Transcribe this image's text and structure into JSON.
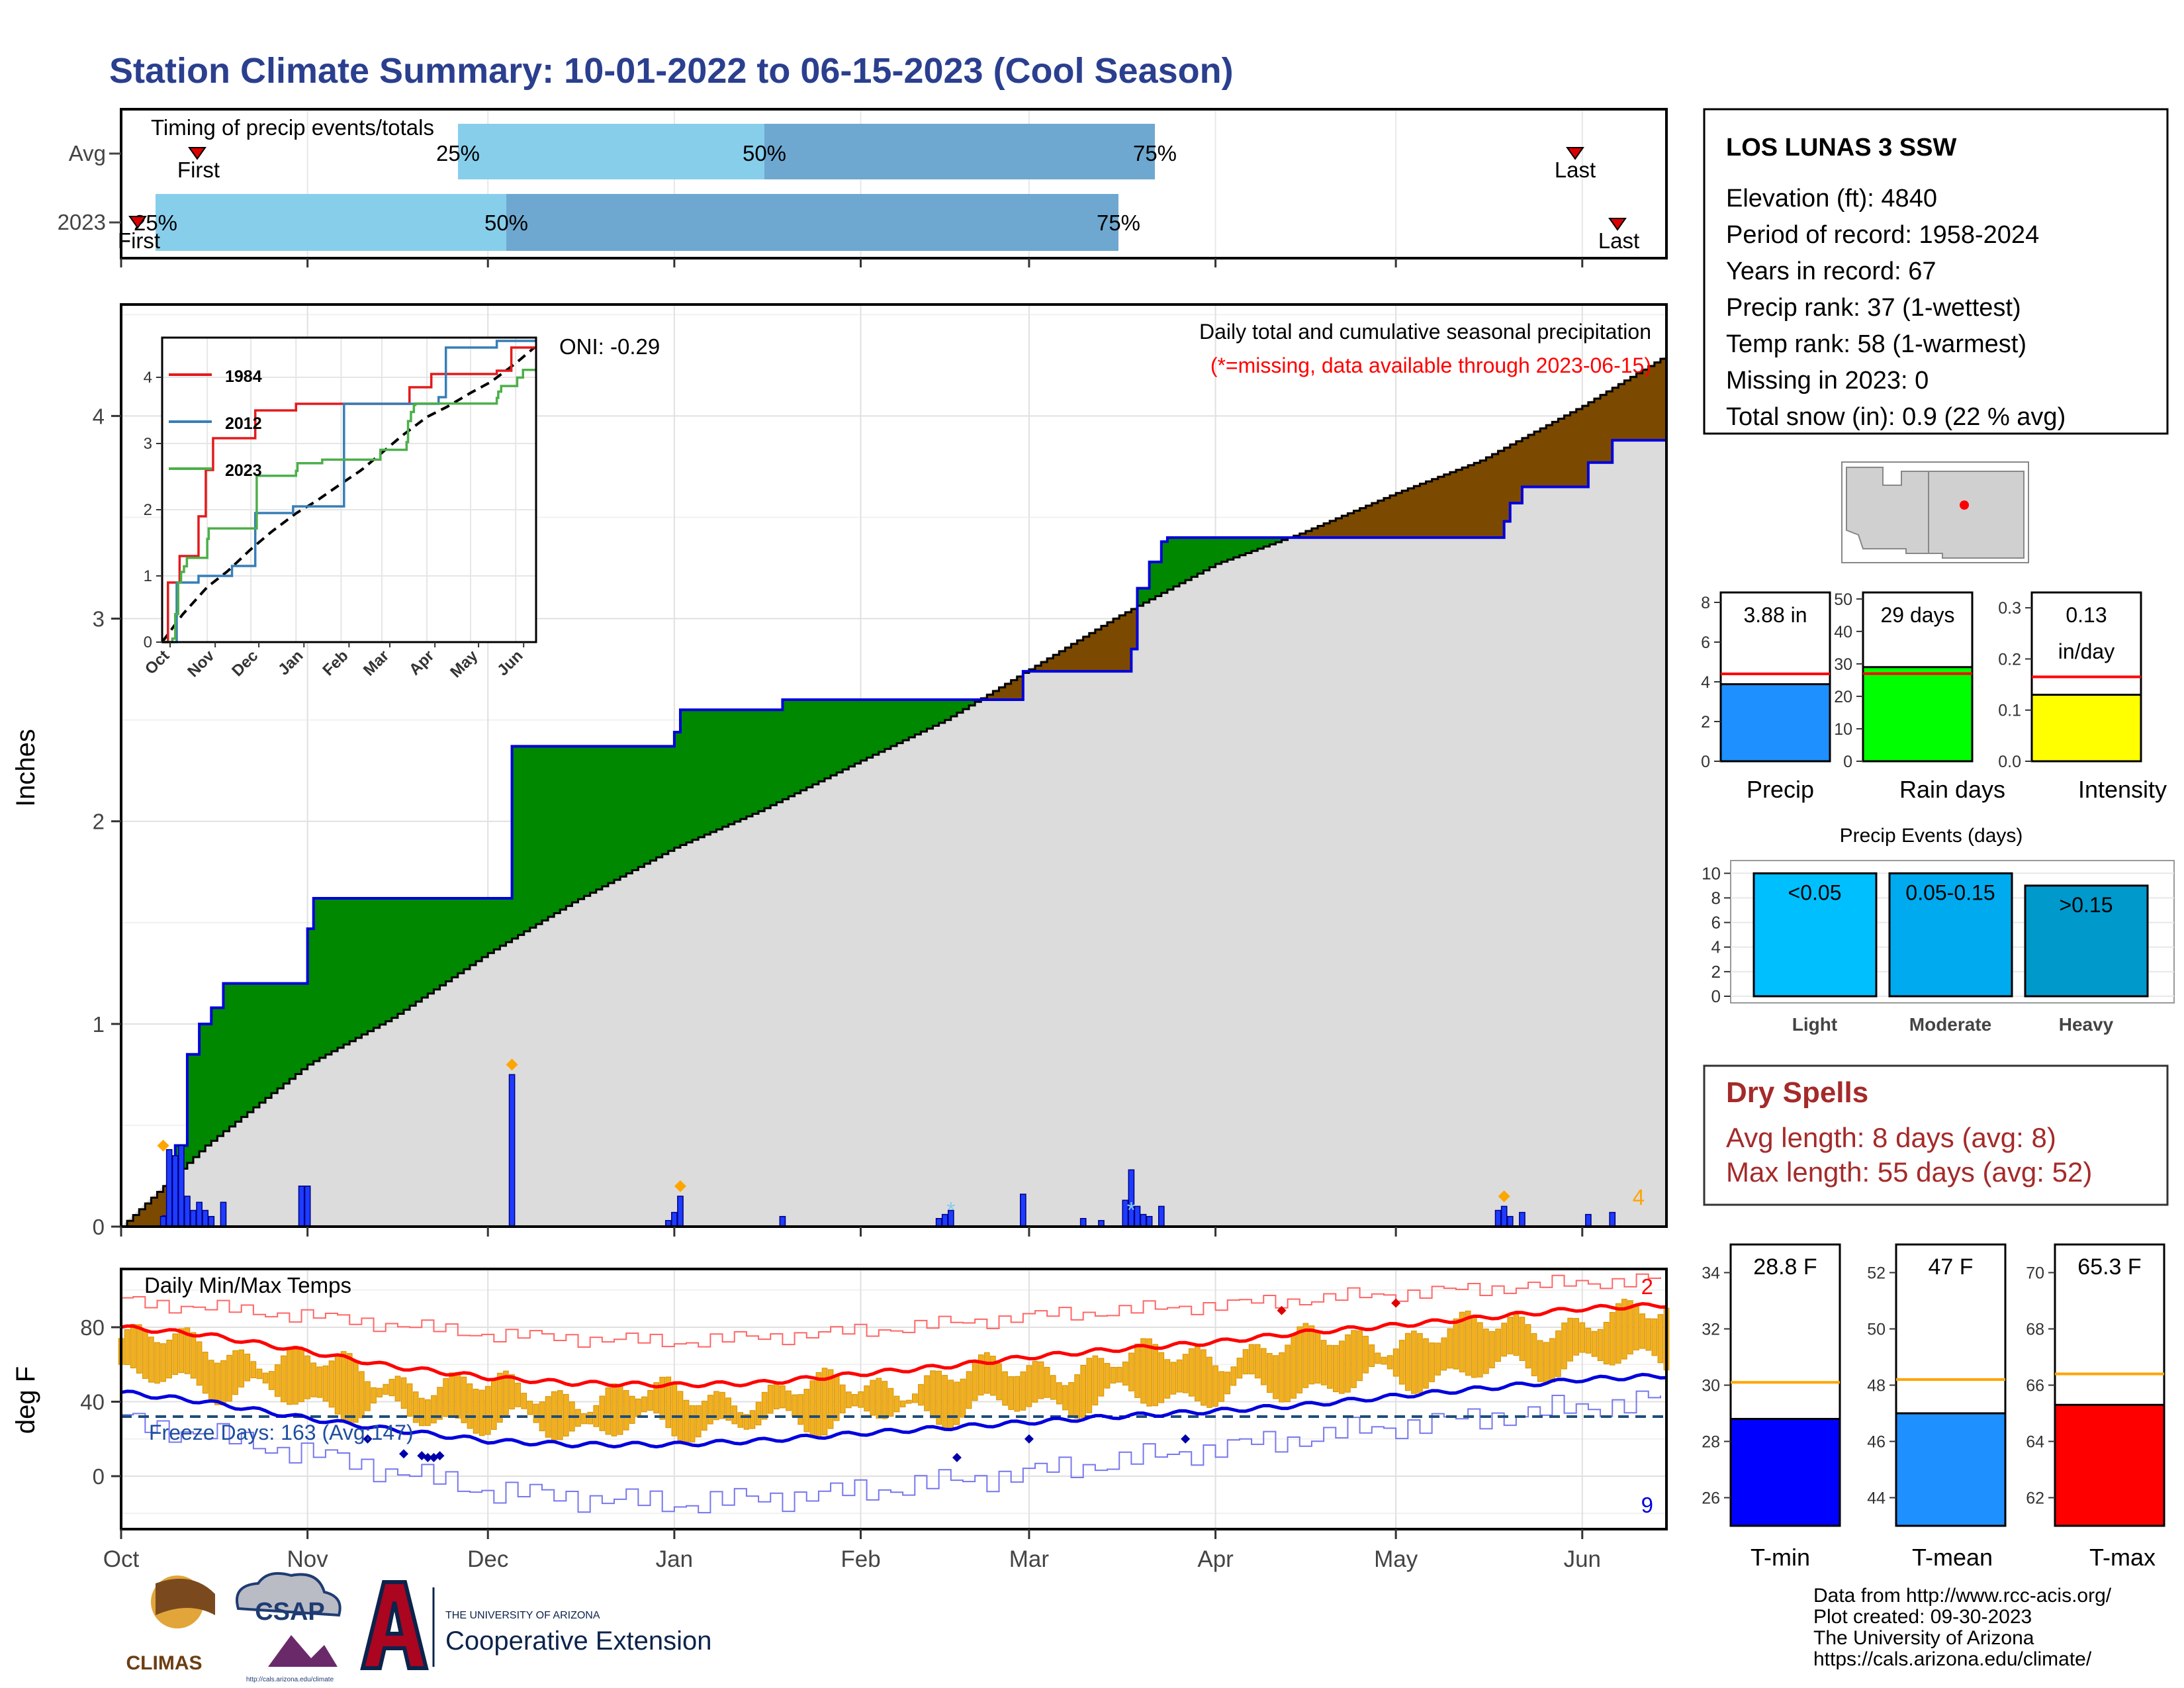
{
  "title": "Station Climate Summary: 10-01-2022 to 06-15-2023 (Cool Season)",
  "colors": {
    "title": "#2b3f8f",
    "dry": "#a52a2a",
    "above": "#008000",
    "below": "#7b4a00",
    "cum": "#dcdcdc",
    "daily": "#0000ff",
    "tmin": "#0000ff",
    "tmean": "#1e90ff",
    "tmax": "#ff0000",
    "avgline": "#ffa500"
  },
  "timing": {
    "title": "Timing of precip events/totals",
    "rows": [
      "Avg",
      "2023"
    ],
    "pct": [
      "25%",
      "50%",
      "75%"
    ],
    "first": "First",
    "last": "Last"
  },
  "info": {
    "station": "LOS LUNAS 3 SSW",
    "lines": [
      "Elevation (ft): 4840",
      "Period of record: 1958-2024",
      "Years in record: 67",
      "Precip rank: 37 (1-wettest)",
      "Temp rank: 58 (1-warmest)",
      "Missing in 2023: 0",
      "Total snow (in): 0.9 (22 % avg)"
    ]
  },
  "precip_panel": {
    "ylabel": "Inches",
    "yticks": [
      "0",
      "1",
      "2",
      "3",
      "4"
    ],
    "oni": "ONI: -0.29",
    "legend1": "Daily total and cumulative seasonal precipitation",
    "legend2": "(*=missing, data available through 2023-06-15)",
    "corner": "4"
  },
  "inset": {
    "years": [
      "1984",
      "2012",
      "2023"
    ],
    "xticks": [
      "Oct",
      "Nov",
      "Dec",
      "Jan",
      "Feb",
      "Mar",
      "Apr",
      "May",
      "Jun"
    ],
    "yticks": [
      "0",
      "1",
      "2",
      "3",
      "4"
    ]
  },
  "temp_panel": {
    "ylabel": "deg F",
    "title": "Daily Min/Max Temps",
    "freeze": "Freeze Days: 163 (Avg:147)",
    "yticks": [
      "0",
      "40",
      "80"
    ],
    "corner_max": "2",
    "corner_min": "9"
  },
  "months": [
    "Oct",
    "Nov",
    "Dec",
    "Jan",
    "Feb",
    "Mar",
    "Apr",
    "May",
    "Jun"
  ],
  "small_bars": {
    "precip": {
      "value": "3.88 in",
      "label": "Precip",
      "yticks": [
        "0",
        "2",
        "4",
        "6",
        "8"
      ]
    },
    "raindays": {
      "value": "29 days",
      "label": "Rain days",
      "yticks": [
        "0",
        "10",
        "20",
        "30",
        "40",
        "50"
      ]
    },
    "intensity": {
      "value1": "0.13",
      "value2": "in/day",
      "label": "Intensity",
      "yticks": [
        "0.0",
        "0.1",
        "0.2",
        "0.3"
      ]
    }
  },
  "events": {
    "title": "Precip Events (days)",
    "yticks": [
      "0",
      "2",
      "4",
      "6",
      "8",
      "10"
    ],
    "bars": [
      {
        "value_label": "<0.05",
        "label": "Light"
      },
      {
        "value_label": "0.05-0.15",
        "label": "Moderate"
      },
      {
        "value_label": ">0.15",
        "label": "Heavy"
      }
    ]
  },
  "dry": {
    "title": "Dry Spells",
    "avg": "Avg length: 8 days (avg: 8)",
    "max": "Max length: 55 days (avg: 52)"
  },
  "temps_small": {
    "tmin": {
      "value": "28.8 F",
      "label": "T-min",
      "yticks": [
        "26",
        "28",
        "30",
        "32",
        "34"
      ]
    },
    "tmean": {
      "value": "47 F",
      "label": "T-mean",
      "yticks": [
        "44",
        "46",
        "48",
        "50",
        "52"
      ]
    },
    "tmax": {
      "value": "65.3 F",
      "label": "T-max",
      "yticks": [
        "62",
        "64",
        "66",
        "68",
        "70"
      ]
    }
  },
  "footer": {
    "lines": [
      "Data from http://www.rcc-acis.org/",
      "Plot created: 09-30-2023",
      "The University of Arizona",
      "https://cals.arizona.edu/climate/"
    ],
    "climas": "CLIMAS",
    "csap": "CSAP",
    "csap_url": "http://cals.arizona.edu/climate",
    "ua_small": "THE UNIVERSITY OF ARIZONA",
    "ua_big": "Cooperative Extension"
  },
  "chart_data": [
    {
      "type": "area",
      "title": "Daily total and cumulative seasonal precipitation",
      "ylabel": "Inches",
      "ylim": [
        0,
        4.55
      ],
      "xrange": [
        "2022-10-01",
        "2023-06-15"
      ],
      "cumulative_2023": [
        [
          "2022-10-01",
          0
        ],
        [
          "2022-10-08",
          0.05
        ],
        [
          "2022-10-10",
          0.4
        ],
        [
          "2022-10-12",
          0.85
        ],
        [
          "2022-10-14",
          1.0
        ],
        [
          "2022-10-16",
          1.08
        ],
        [
          "2022-10-18",
          1.2
        ],
        [
          "2022-10-31",
          1.2
        ],
        [
          "2022-11-01",
          1.47
        ],
        [
          "2022-11-02",
          1.62
        ],
        [
          "2022-12-04",
          1.62
        ],
        [
          "2022-12-05",
          2.37
        ],
        [
          "2022-12-31",
          2.37
        ],
        [
          "2023-01-01",
          2.44
        ],
        [
          "2023-01-02",
          2.55
        ],
        [
          "2023-01-18",
          2.55
        ],
        [
          "2023-01-19",
          2.6
        ],
        [
          "2023-02-27",
          2.6
        ],
        [
          "2023-02-28",
          2.74
        ],
        [
          "2023-03-17",
          2.74
        ],
        [
          "2023-03-18",
          2.85
        ],
        [
          "2023-03-19",
          3.15
        ],
        [
          "2023-03-21",
          3.28
        ],
        [
          "2023-03-23",
          3.38
        ],
        [
          "2023-03-24",
          3.4
        ],
        [
          "2023-05-18",
          3.4
        ],
        [
          "2023-05-19",
          3.48
        ],
        [
          "2023-05-20",
          3.57
        ],
        [
          "2023-05-22",
          3.65
        ],
        [
          "2023-06-01",
          3.65
        ],
        [
          "2023-06-02",
          3.77
        ],
        [
          "2023-06-06",
          3.88
        ],
        [
          "2023-06-15",
          3.88
        ]
      ],
      "cumulative_avg": [
        [
          "2022-10-01",
          0
        ],
        [
          "2022-10-15",
          0.4
        ],
        [
          "2022-11-01",
          0.8
        ],
        [
          "2022-11-15",
          1.03
        ],
        [
          "2022-12-01",
          1.35
        ],
        [
          "2022-12-15",
          1.6
        ],
        [
          "2023-01-01",
          1.87
        ],
        [
          "2023-01-15",
          2.05
        ],
        [
          "2023-02-01",
          2.3
        ],
        [
          "2023-02-15",
          2.5
        ],
        [
          "2023-03-01",
          2.75
        ],
        [
          "2023-03-15",
          3.0
        ],
        [
          "2023-04-01",
          3.27
        ],
        [
          "2023-04-15",
          3.42
        ],
        [
          "2023-05-01",
          3.62
        ],
        [
          "2023-05-15",
          3.78
        ],
        [
          "2023-06-01",
          4.05
        ],
        [
          "2023-06-15",
          4.3
        ]
      ],
      "daily": [
        [
          "2022-10-08",
          0.05
        ],
        [
          "2022-10-09",
          0.38
        ],
        [
          "2022-10-10",
          0.35
        ],
        [
          "2022-10-11",
          0.4
        ],
        [
          "2022-10-12",
          0.15
        ],
        [
          "2022-10-13",
          0.08
        ],
        [
          "2022-10-14",
          0.12
        ],
        [
          "2022-10-15",
          0.08
        ],
        [
          "2022-10-16",
          0.05
        ],
        [
          "2022-10-18",
          0.12
        ],
        [
          "2022-10-31",
          0.2
        ],
        [
          "2022-11-01",
          0.2
        ],
        [
          "2022-12-05",
          0.75
        ],
        [
          "2022-12-31",
          0.03
        ],
        [
          "2023-01-01",
          0.07
        ],
        [
          "2023-01-02",
          0.15
        ],
        [
          "2023-01-19",
          0.05
        ],
        [
          "2023-02-14",
          0.04
        ],
        [
          "2023-02-15",
          0.06
        ],
        [
          "2023-02-16",
          0.08
        ],
        [
          "2023-02-28",
          0.16
        ],
        [
          "2023-03-10",
          0.04
        ],
        [
          "2023-03-13",
          0.03
        ],
        [
          "2023-03-17",
          0.13
        ],
        [
          "2023-03-18",
          0.28
        ],
        [
          "2023-03-19",
          0.1
        ],
        [
          "2023-03-20",
          0.06
        ],
        [
          "2023-03-21",
          0.05
        ],
        [
          "2023-03-23",
          0.1
        ],
        [
          "2023-05-18",
          0.08
        ],
        [
          "2023-05-19",
          0.1
        ],
        [
          "2023-05-20",
          0.05
        ],
        [
          "2023-05-22",
          0.07
        ],
        [
          "2023-06-02",
          0.06
        ],
        [
          "2023-06-06",
          0.07
        ]
      ]
    },
    {
      "type": "line",
      "title": "",
      "series": [
        {
          "name": "1984"
        },
        {
          "name": "2012"
        },
        {
          "name": "2023"
        }
      ],
      "xticks": [
        "Oct",
        "Nov",
        "Dec",
        "Jan",
        "Feb",
        "Mar",
        "Apr",
        "May",
        "Jun"
      ],
      "ylim": [
        0,
        4.6
      ]
    },
    {
      "type": "line",
      "title": "Daily Min/Max Temps",
      "ylabel": "deg F",
      "ylim": [
        -25,
        110
      ],
      "freeze_line": 32,
      "avg_max": [
        [
          "2022-10-01",
          80
        ],
        [
          "2022-10-15",
          76
        ],
        [
          "2022-11-01",
          67
        ],
        [
          "2022-11-15",
          59
        ],
        [
          "2022-12-01",
          53
        ],
        [
          "2022-12-15",
          50
        ],
        [
          "2023-01-01",
          49
        ],
        [
          "2023-01-15",
          50
        ],
        [
          "2023-02-01",
          55
        ],
        [
          "2023-02-15",
          59
        ],
        [
          "2023-03-01",
          64
        ],
        [
          "2023-03-15",
          68
        ],
        [
          "2023-04-01",
          72
        ],
        [
          "2023-04-15",
          77
        ],
        [
          "2023-05-01",
          81
        ],
        [
          "2023-05-15",
          85
        ],
        [
          "2023-06-01",
          90
        ],
        [
          "2023-06-15",
          92
        ]
      ],
      "avg_min": [
        [
          "2022-10-01",
          45
        ],
        [
          "2022-10-15",
          40
        ],
        [
          "2022-11-01",
          31
        ],
        [
          "2022-11-15",
          25
        ],
        [
          "2022-12-01",
          19
        ],
        [
          "2022-12-15",
          17
        ],
        [
          "2023-01-01",
          17
        ],
        [
          "2023-01-15",
          19
        ],
        [
          "2023-02-01",
          23
        ],
        [
          "2023-02-15",
          26
        ],
        [
          "2023-03-01",
          29
        ],
        [
          "2023-03-15",
          32
        ],
        [
          "2023-04-01",
          35
        ],
        [
          "2023-04-15",
          38
        ],
        [
          "2023-05-01",
          43
        ],
        [
          "2023-05-15",
          47
        ],
        [
          "2023-06-01",
          52
        ],
        [
          "2023-06-15",
          54
        ]
      ],
      "record_max": [
        [
          "2022-10-01",
          94
        ],
        [
          "2022-11-01",
          86
        ],
        [
          "2022-12-01",
          76
        ],
        [
          "2023-01-01",
          72
        ],
        [
          "2023-02-01",
          78
        ],
        [
          "2023-03-01",
          86
        ],
        [
          "2023-04-01",
          92
        ],
        [
          "2023-05-01",
          98
        ],
        [
          "2023-06-01",
          104
        ],
        [
          "2023-06-15",
          106
        ]
      ],
      "record_min": [
        [
          "2022-10-01",
          30
        ],
        [
          "2022-11-01",
          12
        ],
        [
          "2022-12-01",
          -8
        ],
        [
          "2023-01-01",
          -15
        ],
        [
          "2023-02-01",
          -8
        ],
        [
          "2023-03-01",
          2
        ],
        [
          "2023-04-01",
          15
        ],
        [
          "2023-05-01",
          27
        ],
        [
          "2023-06-01",
          37
        ],
        [
          "2023-06-15",
          42
        ]
      ]
    },
    {
      "type": "bar",
      "categories": [
        "Precip"
      ],
      "values": [
        3.88
      ],
      "avg": 4.4,
      "ylim": [
        0,
        8.5
      ]
    },
    {
      "type": "bar",
      "categories": [
        "Rain days"
      ],
      "values": [
        29
      ],
      "avg": 27,
      "ylim": [
        0,
        52
      ]
    },
    {
      "type": "bar",
      "categories": [
        "Intensity"
      ],
      "values": [
        0.13
      ],
      "avg": 0.165,
      "ylim": [
        0,
        0.33
      ]
    },
    {
      "type": "bar",
      "title": "Precip Events (days)",
      "categories": [
        "Light",
        "Moderate",
        "Heavy"
      ],
      "values": [
        10,
        10,
        9
      ],
      "ylim": [
        0,
        10.5
      ]
    },
    {
      "type": "bar",
      "categories": [
        "T-min"
      ],
      "values": [
        28.8
      ],
      "avg": 30.1,
      "ylim": [
        25,
        35
      ]
    },
    {
      "type": "bar",
      "categories": [
        "T-mean"
      ],
      "values": [
        47
      ],
      "avg": 48.2,
      "ylim": [
        43,
        53
      ]
    },
    {
      "type": "bar",
      "categories": [
        "T-max"
      ],
      "values": [
        65.3
      ],
      "avg": 66.4,
      "ylim": [
        61,
        71
      ]
    }
  ]
}
